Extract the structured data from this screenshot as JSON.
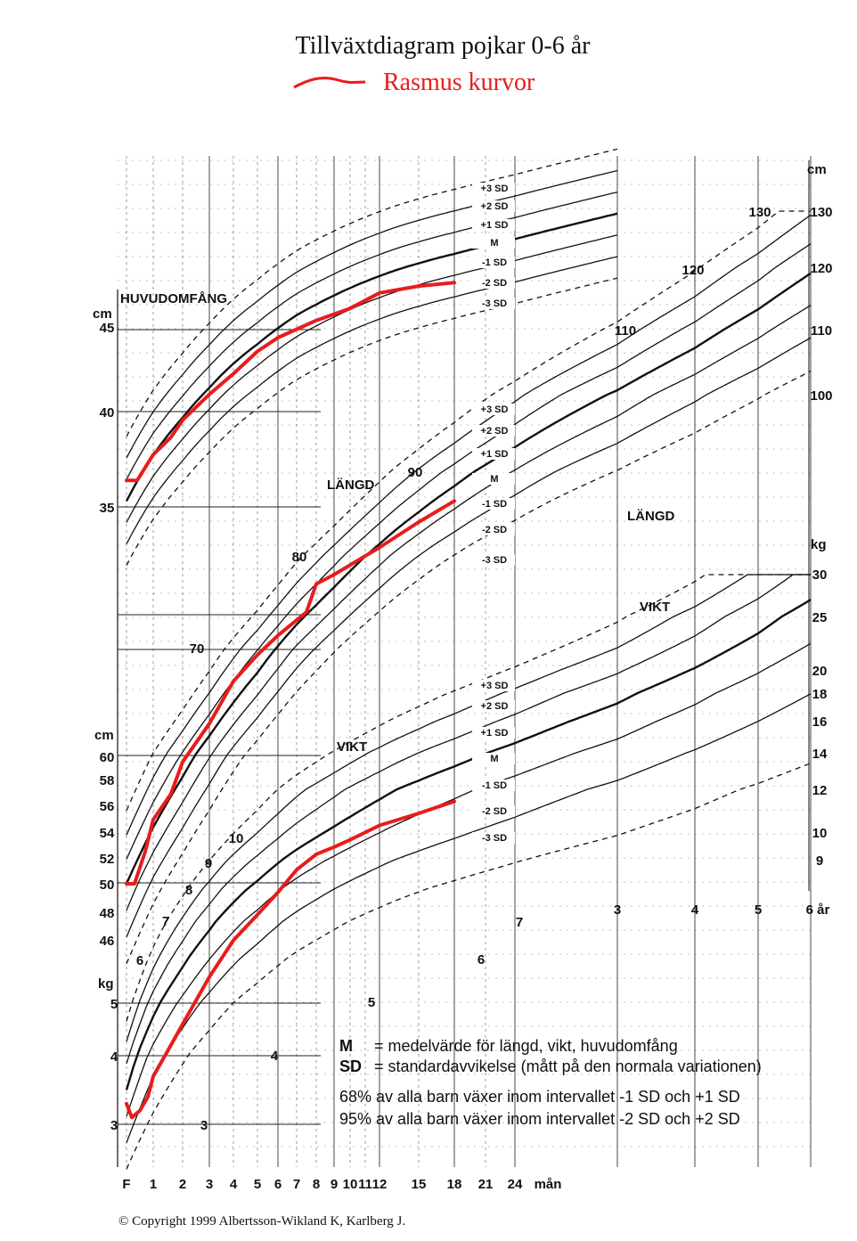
{
  "title": "Tillväxtdiagram pojkar 0-6 år",
  "legend_label": "Rasmus kurvor",
  "copyright": "© Copyright 1999 Albertsson-Wikland K, Karlberg J.",
  "colors": {
    "red": "#e81c1c",
    "ink": "#111111"
  },
  "chart_data": {
    "type": "line",
    "title": "Tillväxtdiagram pojkar 0-6 år",
    "x_axis": {
      "labels_months": [
        "F",
        "1",
        "2",
        "3",
        "4",
        "5",
        "6",
        "7",
        "8",
        "9",
        "10",
        "11",
        "12",
        "15",
        "18",
        "21",
        "24",
        "mån"
      ],
      "labels_years": [
        "3",
        "4",
        "5",
        "6 år"
      ],
      "note": "log-type age scale, F = birth, months 0-24 then years to 6"
    },
    "sections": {
      "head": {
        "label": "HUVUDOMFÅNG",
        "unit": "cm",
        "ticks": [
          "35",
          "40",
          "45"
        ],
        "sd_labels": [
          "+3 SD",
          "+2 SD",
          "+1 SD",
          "M",
          "-1 SD",
          "-2 SD",
          "-3 SD"
        ]
      },
      "length": {
        "label": "LÄNGD",
        "unit": "cm",
        "ticks_left": [
          "46",
          "48",
          "50",
          "52",
          "54",
          "56",
          "58",
          "60"
        ],
        "ticks_inner": [
          "70",
          "80",
          "90",
          "110",
          "120",
          "130"
        ],
        "ticks_right": [
          "100",
          "110",
          "120",
          "130"
        ],
        "sd_labels": [
          "+3 SD",
          "+2 SD",
          "+1 SD",
          "M",
          "-1 SD",
          "-2 SD",
          "-3 SD"
        ]
      },
      "weight": {
        "label": "VIKT",
        "unit": "kg",
        "ticks_left": [
          "3",
          "4",
          "5"
        ],
        "ticks_inner": [
          "3",
          "4",
          "5",
          "6",
          "7",
          "8",
          "9",
          "10",
          "6",
          "7"
        ],
        "ticks_right": [
          "9",
          "10",
          "12",
          "14",
          "16",
          "18",
          "20",
          "25",
          "30"
        ],
        "sd_labels": [
          "+3 SD",
          "+2 SD",
          "+1 SD",
          "M",
          "-1 SD",
          "-2 SD",
          "-3 SD"
        ]
      }
    },
    "series": [
      {
        "name": "Rasmus kurvor (huvudomfång)",
        "x_months": [
          0,
          0.4,
          1,
          1.6,
          2,
          3,
          4,
          5,
          6,
          8,
          10,
          12,
          15,
          18
        ],
        "y": [
          36,
          36,
          37.5,
          38.5,
          39.5,
          41,
          42.2,
          43.5,
          44.3,
          45.3,
          46,
          46.9,
          47.3,
          47.5
        ]
      },
      {
        "name": "Rasmus kurvor (längd)",
        "x_months": [
          0,
          0.3,
          0.7,
          1,
          1.6,
          2,
          3,
          4,
          5,
          6,
          7.5,
          8,
          9,
          12,
          15,
          18
        ],
        "y": [
          50,
          50,
          52.5,
          55,
          57,
          59.5,
          63,
          67,
          69.5,
          71.5,
          74,
          77,
          78,
          81,
          84,
          86.5
        ]
      },
      {
        "name": "Rasmus kurvor (vikt)",
        "x_months": [
          0,
          0.2,
          0.5,
          0.8,
          1,
          1.5,
          2,
          3,
          4,
          5,
          6,
          7,
          8,
          9,
          10,
          12,
          15,
          18
        ],
        "y": [
          3.3,
          3.1,
          3.2,
          3.4,
          3.7,
          4.1,
          4.6,
          5.6,
          6.5,
          7.2,
          7.9,
          8.7,
          9.3,
          9.6,
          9.9,
          10.5,
          11.0,
          11.5
        ]
      }
    ]
  },
  "legend_notes": {
    "m_key": "M",
    "m_text": "= medelvärde för längd, vikt, huvudomfång",
    "sd_key": "SD",
    "sd_text": "= standardavvikelse (mått på den normala variationen)",
    "line68": "68% av alla barn växer inom intervallet -1 SD och +1 SD",
    "line95": "95% av alla barn växer inom intervallet -2 SD och +2 SD"
  }
}
